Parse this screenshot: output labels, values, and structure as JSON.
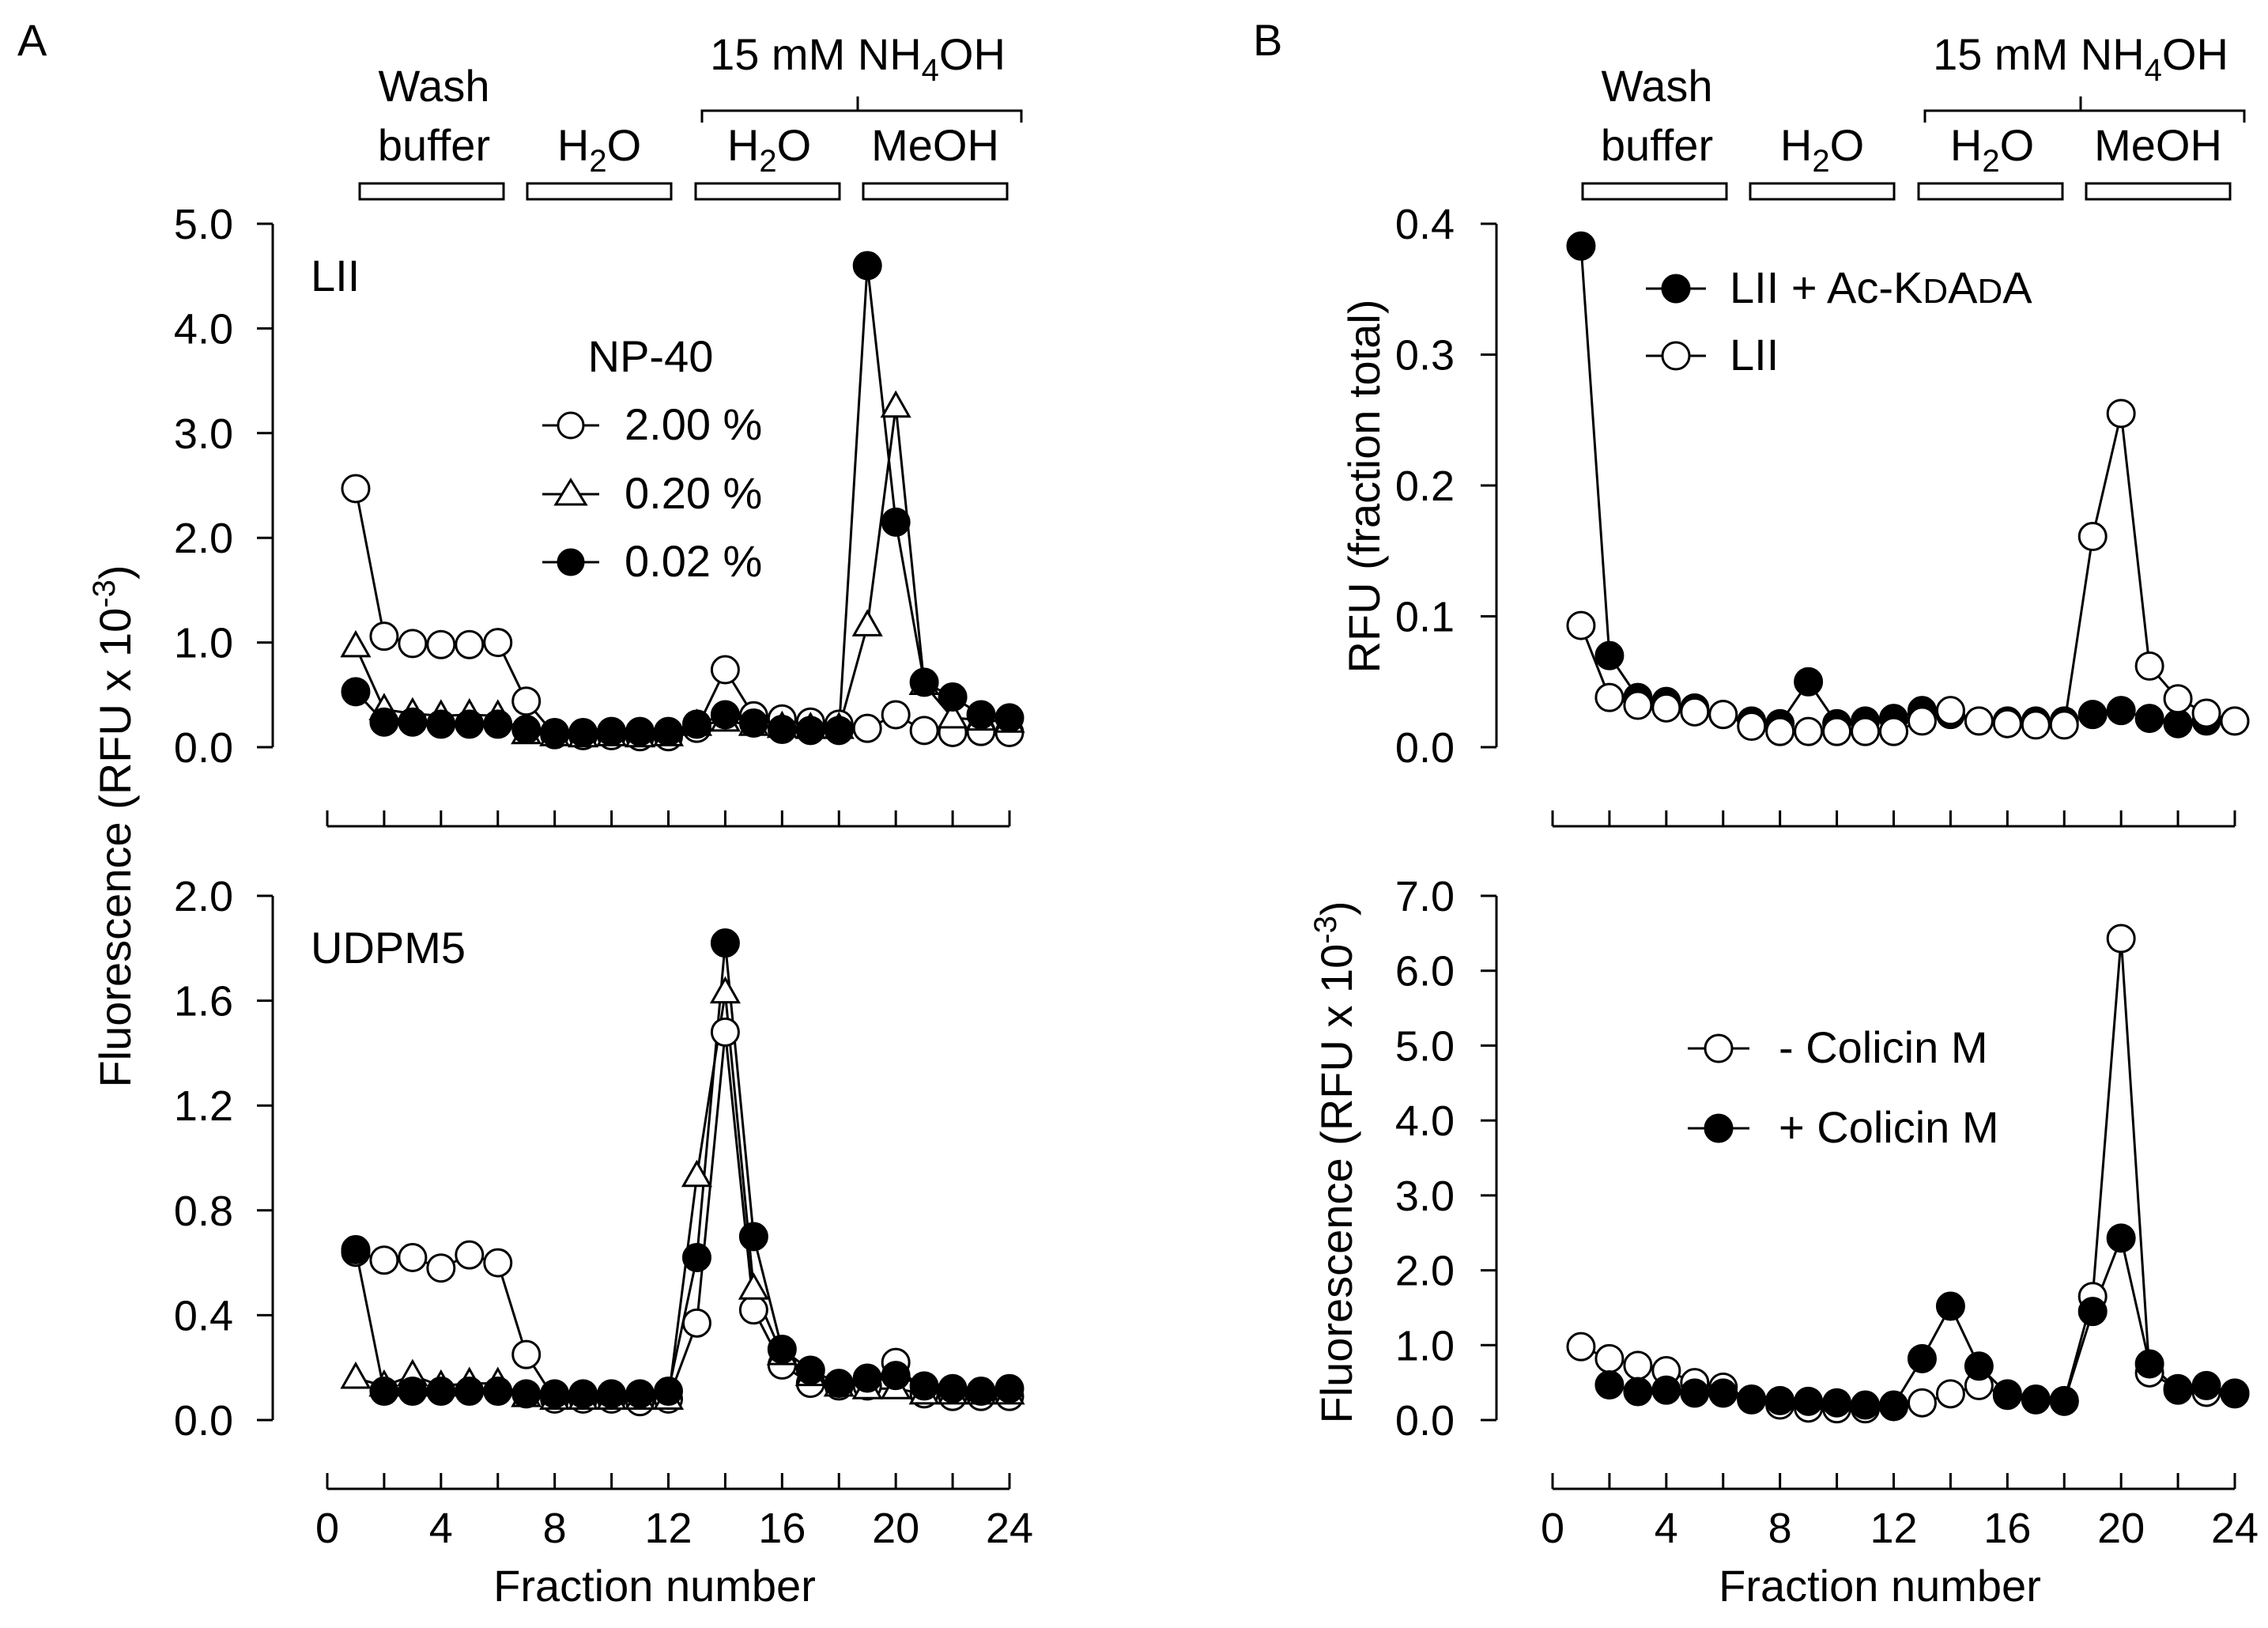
{
  "panels": [
    {
      "letter": "A",
      "wash_label_1": "Wash",
      "wash_label_2": "buffer",
      "h2o_label": "H",
      "h2o_sub": "2",
      "h2o_tail": "O",
      "nh4oh_prefix": "15 mM NH",
      "nh4oh_sub": "4",
      "nh4oh_tail": "OH",
      "nh4oh_h2o": "H",
      "nh4oh_h2o_sub": "2",
      "nh4oh_h2o_tail": "O",
      "meoh_label": "MeOH"
    },
    {
      "letter": "B",
      "wash_label_1": "Wash",
      "wash_label_2": "buffer",
      "h2o_label": "H",
      "h2o_sub": "2",
      "h2o_tail": "O",
      "nh4oh_prefix": "15 mM NH",
      "nh4oh_sub": "4",
      "nh4oh_tail": "OH",
      "nh4oh_h2o": "H",
      "nh4oh_h2o_sub": "2",
      "nh4oh_h2o_tail": "O",
      "meoh_label": "MeOH"
    }
  ],
  "axis_text": {
    "a_ylabel": "Fluorescence (RFU x 10",
    "a_ylabel_exp": "-3",
    "a_ylabel_close": ")",
    "b_top_ylabel": "RFU (fraction total)",
    "b_bottom_ylabel": "Fluorescence (RFU x 10",
    "b_bottom_ylabel_exp": "-3",
    "b_bottom_ylabel_close": ")",
    "xlabel": "Fraction number"
  },
  "legend_text": {
    "np40_title": "NP-40",
    "np40_200": "2.00 %",
    "np40_020": "0.20 %",
    "np40_002": "0.02 %",
    "kdada_prefix": "LII + Ac-K",
    "kdada_d1": "D",
    "kdada_a": "A",
    "kdada_d2": "D",
    "kdada_a2": "A",
    "lii": "LII",
    "minus_colicin": "- Colicin M",
    "plus_colicin": "+ Colicin M"
  },
  "chart_data": [
    {
      "id": "A-top",
      "type": "line",
      "panel": "A",
      "annotation": "LII",
      "xlim": [
        0,
        24
      ],
      "ylim": [
        0,
        5.0
      ],
      "yticks": [
        "0.0",
        "1.0",
        "2.0",
        "3.0",
        "4.0",
        "5.0"
      ],
      "xticks": [],
      "series": [
        {
          "name": "2.00 %",
          "marker": "open-circle",
          "x": [
            1,
            2,
            3,
            4,
            5,
            6,
            7,
            8,
            9,
            10,
            11,
            12,
            13,
            14,
            15,
            16,
            17,
            18,
            19,
            20,
            21,
            22,
            23,
            24
          ],
          "y": [
            2.47,
            1.06,
            0.99,
            0.98,
            0.98,
            1.0,
            0.44,
            0.12,
            0.11,
            0.11,
            0.1,
            0.1,
            0.18,
            0.74,
            0.3,
            0.27,
            0.24,
            0.22,
            0.18,
            0.31,
            0.16,
            0.14,
            0.15,
            0.14
          ]
        },
        {
          "name": "0.20 %",
          "marker": "open-triangle",
          "x": [
            1,
            2,
            3,
            4,
            5,
            6,
            7,
            8,
            9,
            10,
            11,
            12,
            13,
            14,
            15,
            16,
            17,
            18,
            19,
            20,
            21,
            22,
            23,
            24
          ],
          "y": [
            0.96,
            0.36,
            0.32,
            0.3,
            0.31,
            0.3,
            0.13,
            0.11,
            0.1,
            0.11,
            0.1,
            0.11,
            0.21,
            0.25,
            0.21,
            0.19,
            0.18,
            0.18,
            1.16,
            3.25,
            0.6,
            0.28,
            0.26,
            0.24
          ]
        },
        {
          "name": "0.02 %",
          "marker": "filled-circle",
          "x": [
            1,
            2,
            3,
            4,
            5,
            6,
            7,
            8,
            9,
            10,
            11,
            12,
            13,
            14,
            15,
            16,
            17,
            18,
            19,
            20,
            21,
            22,
            23,
            24
          ],
          "y": [
            0.53,
            0.24,
            0.24,
            0.22,
            0.22,
            0.22,
            0.17,
            0.14,
            0.14,
            0.15,
            0.15,
            0.15,
            0.22,
            0.31,
            0.23,
            0.17,
            0.16,
            0.16,
            4.6,
            2.15,
            0.62,
            0.48,
            0.31,
            0.28
          ]
        }
      ]
    },
    {
      "id": "A-bottom",
      "type": "line",
      "panel": "A",
      "annotation": "UDPM5",
      "xlim": [
        0,
        24
      ],
      "ylim": [
        0,
        2.0
      ],
      "yticks": [
        "0.0",
        "0.4",
        "0.8",
        "1.2",
        "1.6",
        "2.0"
      ],
      "xticks": [
        "0",
        "4",
        "8",
        "12",
        "16",
        "20",
        "24"
      ],
      "xlabel": "Fraction number",
      "series": [
        {
          "name": "2.00 %",
          "marker": "open-circle",
          "x": [
            1,
            2,
            3,
            4,
            5,
            6,
            7,
            8,
            9,
            10,
            11,
            12,
            13,
            14,
            15,
            16,
            17,
            18,
            19,
            20,
            21,
            22,
            23,
            24
          ],
          "y": [
            0.64,
            0.61,
            0.62,
            0.58,
            0.63,
            0.6,
            0.25,
            0.08,
            0.08,
            0.08,
            0.07,
            0.08,
            0.37,
            1.48,
            0.42,
            0.21,
            0.14,
            0.13,
            0.13,
            0.22,
            0.1,
            0.09,
            0.09,
            0.09
          ]
        },
        {
          "name": "0.20 %",
          "marker": "open-triangle",
          "x": [
            1,
            2,
            3,
            4,
            5,
            6,
            7,
            8,
            9,
            10,
            11,
            12,
            13,
            14,
            15,
            16,
            17,
            18,
            19,
            20,
            21,
            22,
            23,
            24
          ],
          "y": [
            0.16,
            0.13,
            0.17,
            0.13,
            0.14,
            0.14,
            0.09,
            0.08,
            0.08,
            0.08,
            0.08,
            0.08,
            0.93,
            1.63,
            0.5,
            0.25,
            0.17,
            0.13,
            0.12,
            0.12,
            0.1,
            0.1,
            0.1,
            0.1
          ]
        },
        {
          "name": "0.02 %",
          "marker": "filled-circle",
          "x": [
            1,
            2,
            3,
            4,
            5,
            6,
            7,
            8,
            9,
            10,
            11,
            12,
            13,
            14,
            15,
            16,
            17,
            18,
            19,
            20,
            21,
            22,
            23,
            24
          ],
          "y": [
            0.65,
            0.11,
            0.11,
            0.11,
            0.11,
            0.11,
            0.1,
            0.1,
            0.1,
            0.1,
            0.1,
            0.11,
            0.62,
            1.82,
            0.7,
            0.27,
            0.19,
            0.14,
            0.16,
            0.17,
            0.13,
            0.12,
            0.11,
            0.12
          ]
        }
      ]
    },
    {
      "id": "B-top",
      "type": "line",
      "panel": "B",
      "xlim": [
        0,
        24
      ],
      "ylim": [
        0,
        0.4
      ],
      "yticks": [
        "0.0",
        "0.1",
        "0.2",
        "0.3",
        "0.4"
      ],
      "xticks": [],
      "ylabel": "RFU (fraction total)",
      "series": [
        {
          "name": "LII + Ac-KDADA",
          "marker": "filled-circle",
          "x": [
            1,
            2,
            3,
            4,
            5,
            6,
            7,
            8,
            9,
            10,
            11,
            12,
            13,
            14,
            15,
            16,
            17,
            18,
            19,
            20,
            21,
            22,
            23,
            24
          ],
          "y": [
            0.383,
            0.07,
            0.038,
            0.035,
            0.03,
            0.025,
            0.02,
            0.018,
            0.05,
            0.018,
            0.02,
            0.022,
            0.028,
            0.025,
            0.02,
            0.02,
            0.02,
            0.02,
            0.025,
            0.028,
            0.022,
            0.018,
            0.02,
            0.02
          ]
        },
        {
          "name": "LII",
          "marker": "open-circle",
          "x": [
            1,
            2,
            3,
            4,
            5,
            6,
            7,
            8,
            9,
            10,
            11,
            12,
            13,
            14,
            15,
            16,
            17,
            18,
            19,
            20,
            21,
            22,
            23,
            24
          ],
          "y": [
            0.093,
            0.038,
            0.032,
            0.03,
            0.027,
            0.025,
            0.016,
            0.012,
            0.012,
            0.012,
            0.012,
            0.012,
            0.02,
            0.028,
            0.02,
            0.018,
            0.017,
            0.017,
            0.161,
            0.255,
            0.062,
            0.037,
            0.026,
            0.02
          ]
        }
      ]
    },
    {
      "id": "B-bottom",
      "type": "line",
      "panel": "B",
      "xlim": [
        0,
        24
      ],
      "ylim": [
        0,
        7.0
      ],
      "yticks": [
        "0.0",
        "1.0",
        "2.0",
        "3.0",
        "4.0",
        "5.0",
        "6.0",
        "7.0"
      ],
      "xticks": [
        "0",
        "4",
        "8",
        "12",
        "16",
        "20",
        "24"
      ],
      "xlabel": "Fraction number",
      "series": [
        {
          "name": "- Colicin M",
          "marker": "open-circle",
          "x": [
            1,
            2,
            3,
            4,
            5,
            6,
            7,
            8,
            9,
            10,
            11,
            12,
            13,
            14,
            15,
            16,
            17,
            18,
            19,
            20,
            21,
            22,
            23,
            24
          ],
          "y": [
            0.98,
            0.82,
            0.73,
            0.66,
            0.5,
            0.44,
            0.28,
            0.2,
            0.16,
            0.15,
            0.15,
            0.18,
            0.23,
            0.35,
            0.46,
            0.33,
            0.27,
            0.26,
            1.65,
            6.43,
            0.63,
            0.42,
            0.37,
            0.35
          ]
        },
        {
          "name": "+ Colicin M",
          "marker": "filled-circle",
          "x": [
            2,
            3,
            4,
            5,
            6,
            7,
            8,
            9,
            10,
            11,
            12,
            13,
            14,
            15,
            16,
            17,
            18,
            19,
            20,
            21,
            22,
            23,
            24
          ],
          "y": [
            0.47,
            0.38,
            0.4,
            0.36,
            0.36,
            0.27,
            0.26,
            0.25,
            0.23,
            0.2,
            0.2,
            0.82,
            1.52,
            0.72,
            0.35,
            0.28,
            0.25,
            1.45,
            2.43,
            0.75,
            0.4,
            0.46,
            0.36
          ]
        }
      ]
    }
  ]
}
